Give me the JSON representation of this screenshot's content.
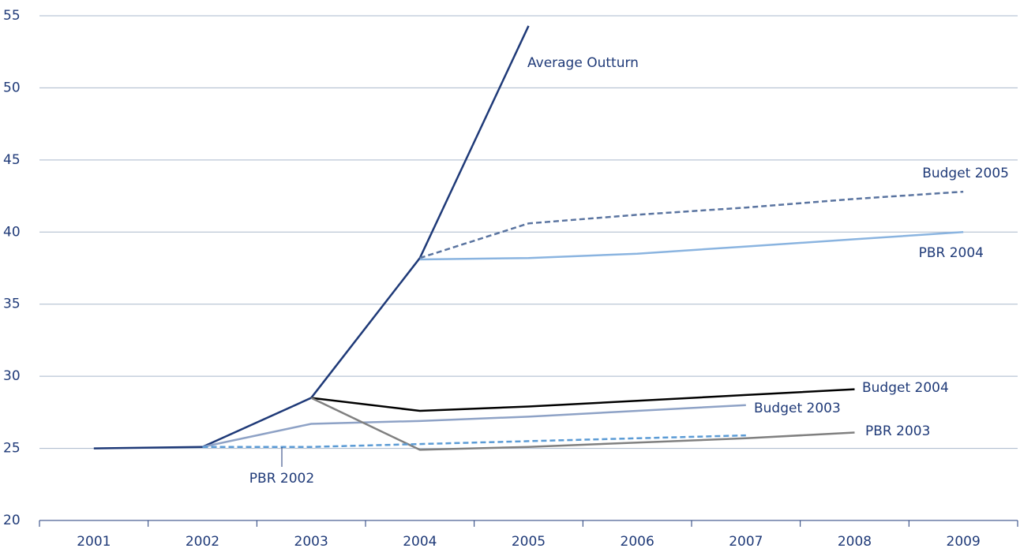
{
  "chart_data": {
    "type": "line",
    "categories": [
      "2001",
      "2002",
      "2003",
      "2004",
      "2005",
      "2006",
      "2007",
      "2008",
      "2009"
    ],
    "series": [
      {
        "name": "Average Outturn",
        "color": "#1f3a78",
        "dashed": false,
        "values": [
          25.0,
          25.1,
          28.5,
          38.2,
          54.3,
          null,
          null,
          null,
          null
        ]
      },
      {
        "name": "Budget 2005",
        "color": "#5a74a0",
        "dashed": true,
        "values": [
          null,
          null,
          null,
          38.2,
          40.6,
          41.2,
          41.7,
          42.3,
          42.8
        ]
      },
      {
        "name": "PBR 2004",
        "color": "#8ab4e0",
        "dashed": false,
        "values": [
          null,
          null,
          null,
          38.1,
          38.2,
          38.5,
          39.0,
          39.5,
          40.0
        ]
      },
      {
        "name": "Budget 2004",
        "color": "#000000",
        "dashed": false,
        "values": [
          null,
          null,
          28.5,
          27.6,
          27.9,
          28.3,
          28.7,
          29.1,
          null
        ]
      },
      {
        "name": "Budget 2003",
        "color": "#8ea2c6",
        "dashed": false,
        "values": [
          null,
          25.1,
          26.7,
          26.9,
          27.2,
          27.6,
          28.0,
          null,
          null
        ]
      },
      {
        "name": "PBR 2003",
        "color": "#808080",
        "dashed": false,
        "values": [
          null,
          null,
          28.5,
          24.9,
          25.1,
          25.4,
          25.7,
          26.1,
          null
        ]
      },
      {
        "name": "PBR 2002",
        "color": "#5b9bd5",
        "dashed": true,
        "values": [
          null,
          25.1,
          25.1,
          25.3,
          25.5,
          25.7,
          25.9,
          null,
          null
        ]
      }
    ],
    "ylim": [
      20,
      55
    ],
    "yticks": [
      20,
      25,
      30,
      35,
      40,
      45,
      50,
      55
    ],
    "grid": true
  }
}
